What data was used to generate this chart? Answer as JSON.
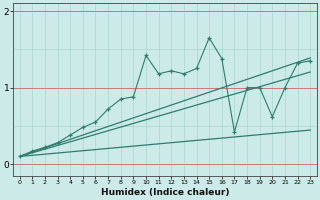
{
  "xlabel": "Humidex (Indice chaleur)",
  "background_color": "#cceae7",
  "grid_color": "#aad6d0",
  "red_line_color": "#cc6666",
  "line_color": "#2e7d6e",
  "x_data": [
    0,
    1,
    2,
    3,
    4,
    5,
    6,
    7,
    8,
    9,
    10,
    11,
    12,
    13,
    14,
    15,
    16,
    17,
    18,
    19,
    20,
    21,
    22,
    23
  ],
  "y_main": [
    0.1,
    0.17,
    0.22,
    0.28,
    0.38,
    0.48,
    0.55,
    0.72,
    0.85,
    0.88,
    1.42,
    1.18,
    1.22,
    1.18,
    1.25,
    1.65,
    1.38,
    0.42,
    1.0,
    1.0,
    0.62,
    1.0,
    1.32,
    1.35
  ],
  "y_line1": [
    0.1,
    0.115,
    0.13,
    0.145,
    0.16,
    0.175,
    0.19,
    0.205,
    0.22,
    0.235,
    0.25,
    0.265,
    0.28,
    0.295,
    0.31,
    0.325,
    0.34,
    0.355,
    0.37,
    0.385,
    0.4,
    0.415,
    0.43,
    0.445
  ],
  "y_line2": [
    0.1,
    0.148,
    0.196,
    0.244,
    0.292,
    0.34,
    0.388,
    0.436,
    0.484,
    0.532,
    0.58,
    0.628,
    0.676,
    0.724,
    0.772,
    0.82,
    0.868,
    0.916,
    0.964,
    1.012,
    1.06,
    1.108,
    1.156,
    1.204
  ],
  "y_line3": [
    0.1,
    0.156,
    0.212,
    0.268,
    0.324,
    0.38,
    0.436,
    0.492,
    0.548,
    0.604,
    0.66,
    0.716,
    0.772,
    0.828,
    0.884,
    0.94,
    0.996,
    1.052,
    1.108,
    1.164,
    1.22,
    1.276,
    1.332,
    1.388
  ],
  "ylim": [
    -0.15,
    2.1
  ],
  "xlim": [
    -0.5,
    23.5
  ],
  "yticks": [
    0,
    1,
    2
  ],
  "xticks": [
    0,
    1,
    2,
    3,
    4,
    5,
    6,
    7,
    8,
    9,
    10,
    11,
    12,
    13,
    14,
    15,
    16,
    17,
    18,
    19,
    20,
    21,
    22,
    23
  ],
  "figsize": [
    3.2,
    2.0
  ],
  "dpi": 100
}
